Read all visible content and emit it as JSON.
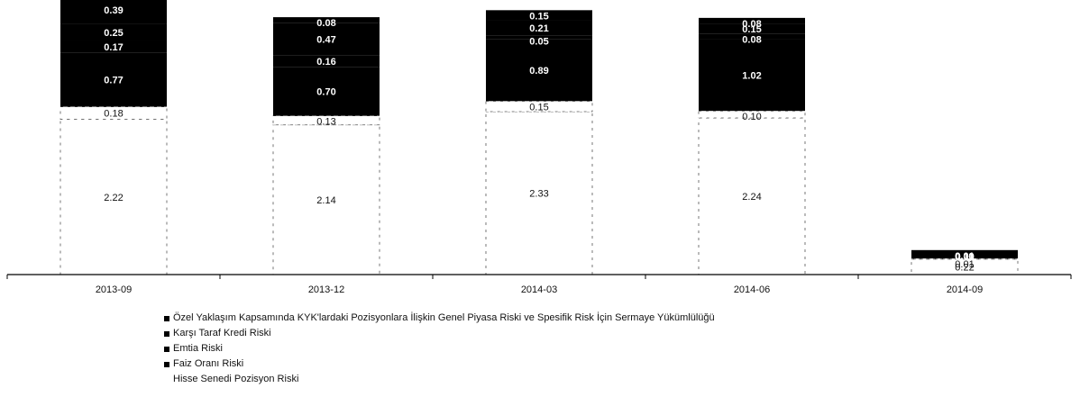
{
  "chart_data": {
    "type": "bar",
    "stacked": true,
    "categories": [
      "2013-09",
      "2013-12",
      "2014-03",
      "2014-06",
      "2014-09"
    ],
    "series": [
      {
        "name": "Hisse Senedi Pozisyon Riski",
        "color": "#ffffff",
        "values": [
          2.22,
          2.14,
          2.33,
          2.24,
          0.22
        ]
      },
      {
        "name": "",
        "color": "#ffffff",
        "values": [
          0.18,
          0.13,
          0.15,
          0.1,
          0.01
        ]
      },
      {
        "name": "Faiz Oranı Riski",
        "color": "#000000",
        "values": [
          0.77,
          0.7,
          0.89,
          1.02,
          0.11
        ]
      },
      {
        "name": "Emtia Riski",
        "color": "#000000",
        "values": [
          0.17,
          0.16,
          0.05,
          0.08,
          0.0
        ]
      },
      {
        "name": "Karşı Taraf Kredi Riski",
        "color": "#000000",
        "values": [
          0.25,
          0.47,
          0.21,
          0.15,
          0.0
        ]
      },
      {
        "name": "Özel Yaklaşım Kapsamında KYK'lardaki Pozisyonlara İlişkin Genel Piyasa Riski ve Spesifik Risk İçin Sermaye Yükümlülüğü",
        "color": "#000000",
        "values": [
          0.39,
          0.08,
          0.15,
          0.08,
          0.01
        ]
      }
    ],
    "segment_labels": [
      [
        "2.22",
        "2.14",
        "2.33",
        "2.24",
        "0.22"
      ],
      [
        "0.18",
        "0.13",
        "0.15",
        "0.10",
        "0.01"
      ],
      [
        "0.77",
        "0.70",
        "0.89",
        "1.02",
        "0.11"
      ],
      [
        "0.17",
        "0.16",
        "0.05",
        "0.08",
        "0.00"
      ],
      [
        "0.25",
        "0.47",
        "0.21",
        "0.15",
        "0.00"
      ],
      [
        "0.39",
        "0.08",
        "0.15",
        "0.08",
        "0.01"
      ]
    ],
    "ylim": [
      0,
      3.9
    ],
    "grid": false,
    "legend_position": "bottom-left",
    "legend": [
      {
        "label": "Özel Yaklaşım Kapsamında KYK'lardaki Pozisyonlara İlişkin Genel Piyasa Riski ve Spesifik Risk İçin Sermaye Yükümlülüğü",
        "marker": true
      },
      {
        "label": "Karşı Taraf Kredi Riski",
        "marker": true
      },
      {
        "label": "Emtia Riski",
        "marker": true
      },
      {
        "label": "Faiz Oranı Riski",
        "marker": true
      },
      {
        "label": "Hisse Senedi Pozisyon Riski",
        "marker": false
      }
    ]
  }
}
